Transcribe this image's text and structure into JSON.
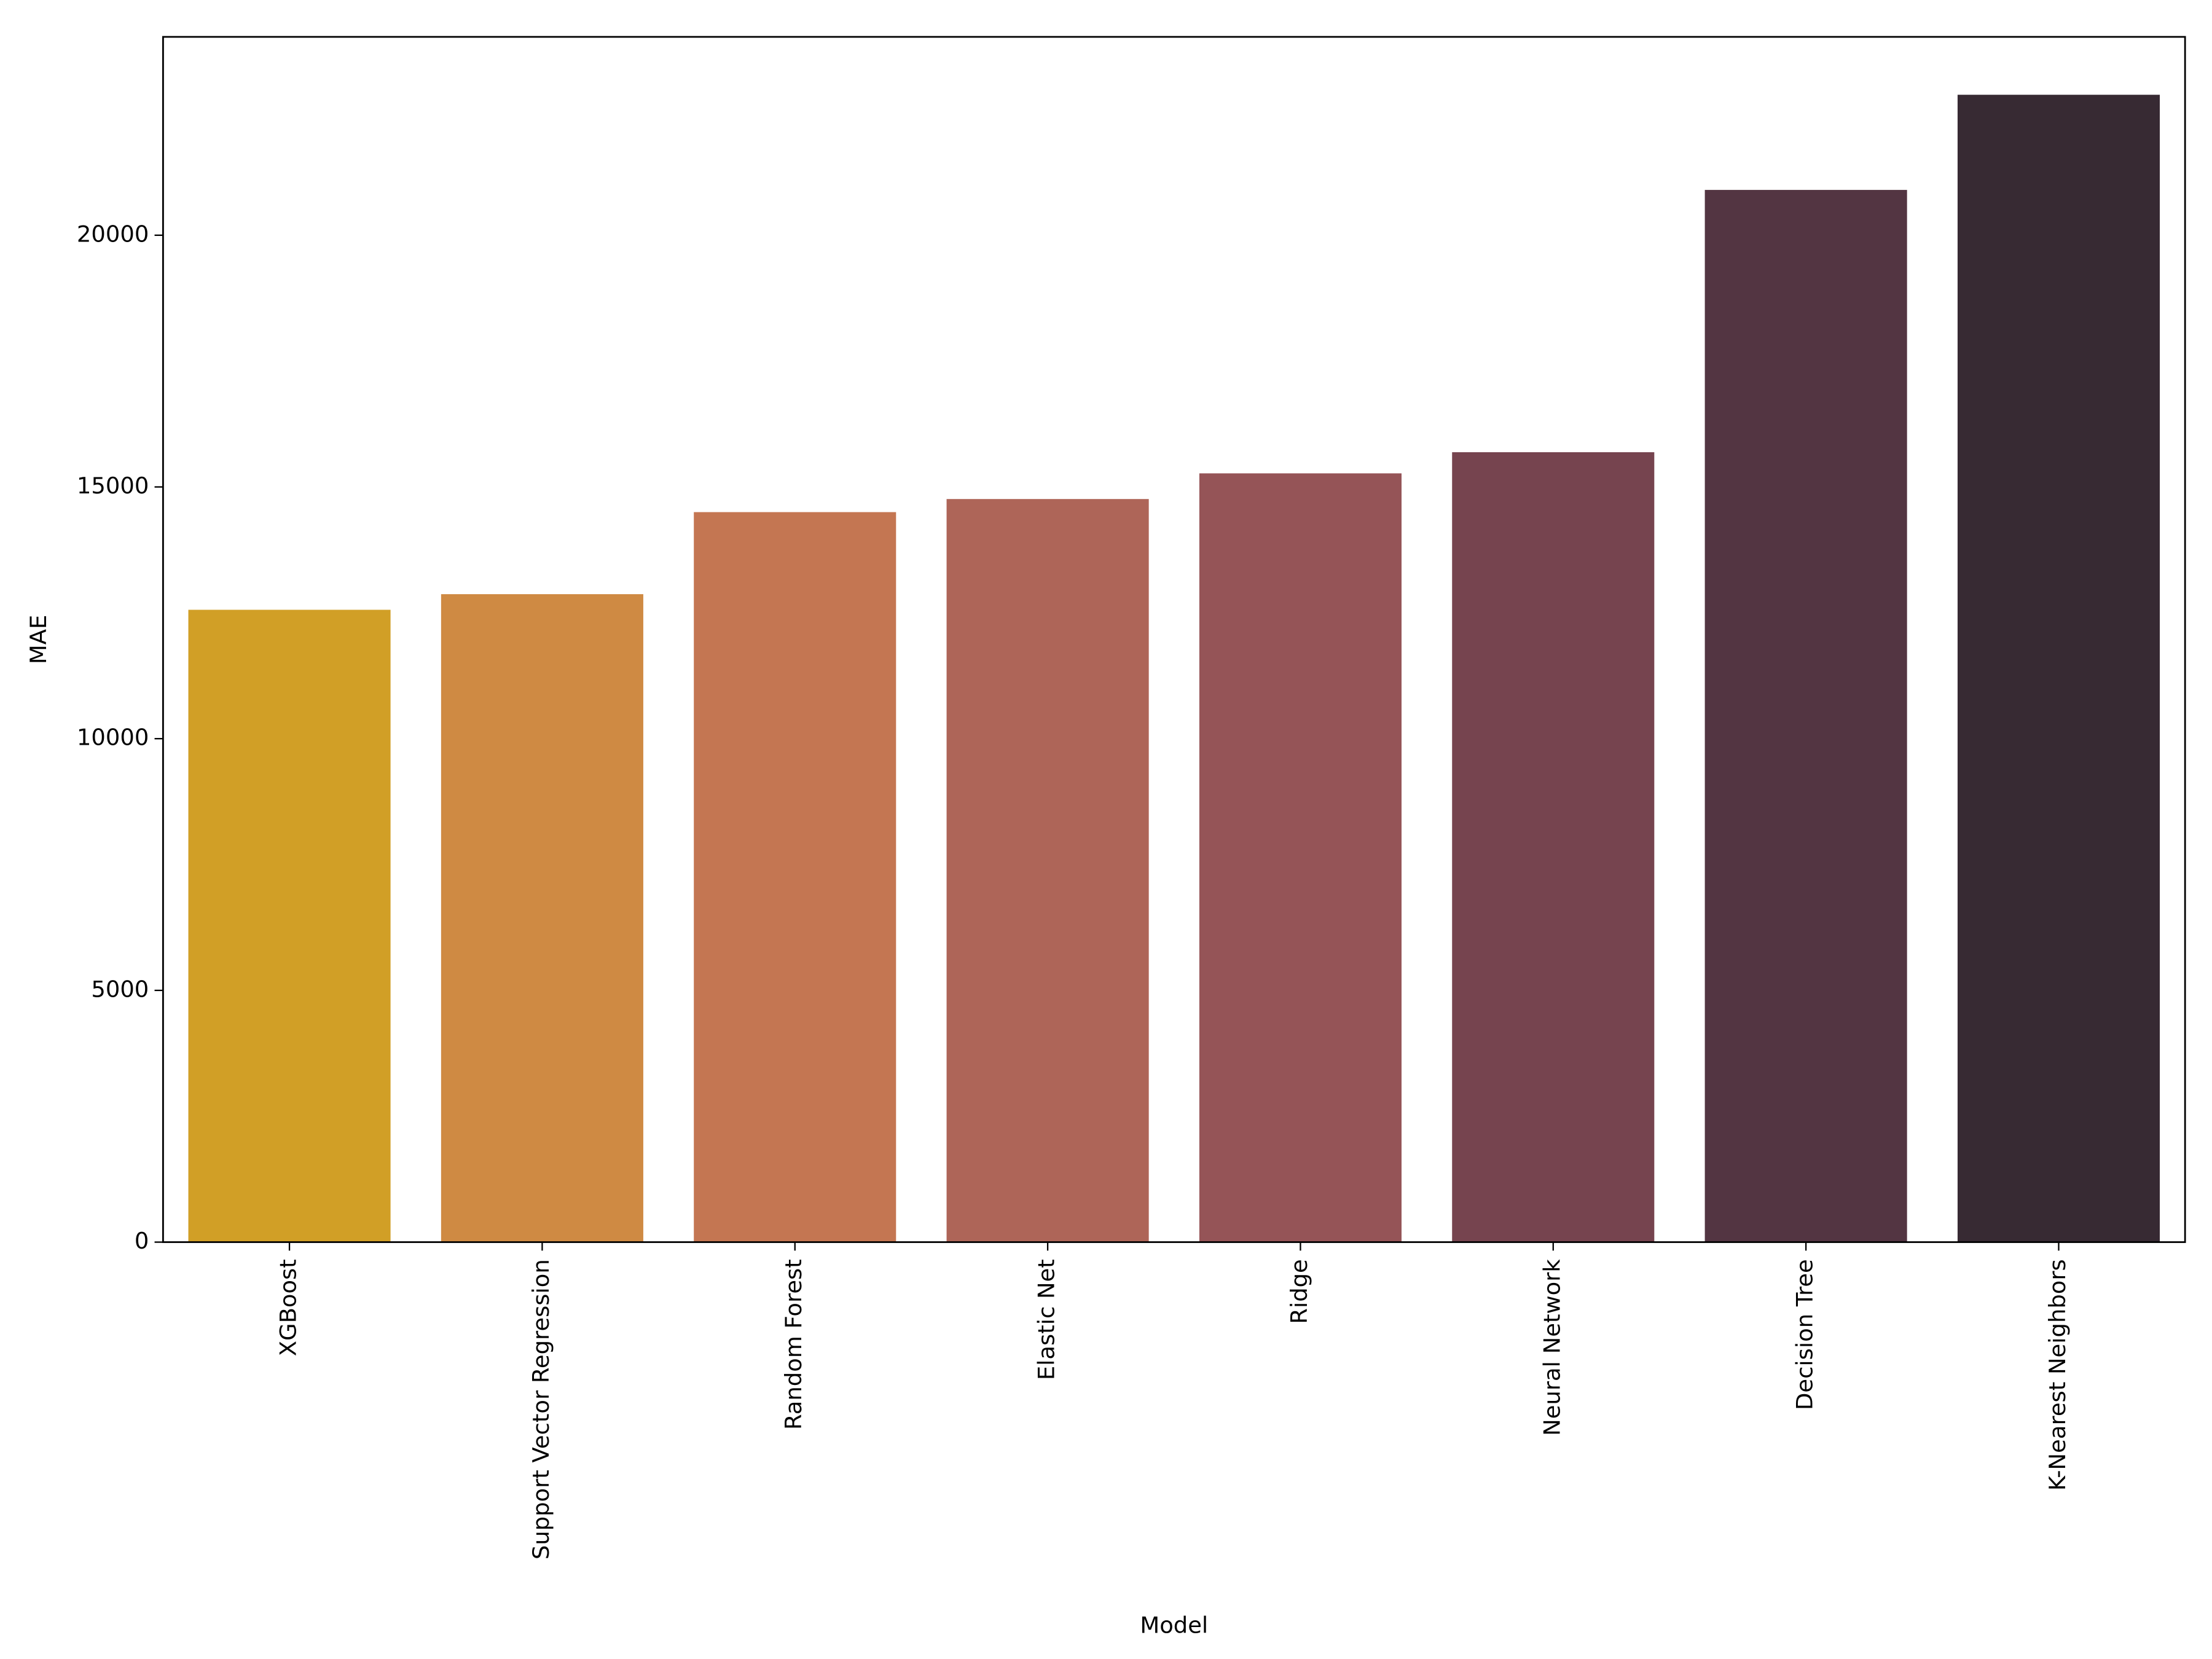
{
  "chart_data": {
    "type": "bar",
    "x_label": "Model",
    "y_label": "MAE",
    "categories": [
      "XGBoost",
      "Support Vector Regression",
      "Random Forest",
      "Elastic Net",
      "Ridge",
      "Neural Network",
      "Decision Tree",
      "K-Nearest Neighbors"
    ],
    "values": [
      12560,
      12870,
      14500,
      14760,
      15270,
      15690,
      20900,
      22790
    ],
    "colors": [
      "#d19f26",
      "#cf8a43",
      "#c47652",
      "#ae6558",
      "#955457",
      "#76444f",
      "#533542",
      "#372a33"
    ],
    "ylim": [
      0,
      23940
    ],
    "yticks": [
      0,
      5000,
      10000,
      15000,
      20000
    ],
    "grid": false
  }
}
